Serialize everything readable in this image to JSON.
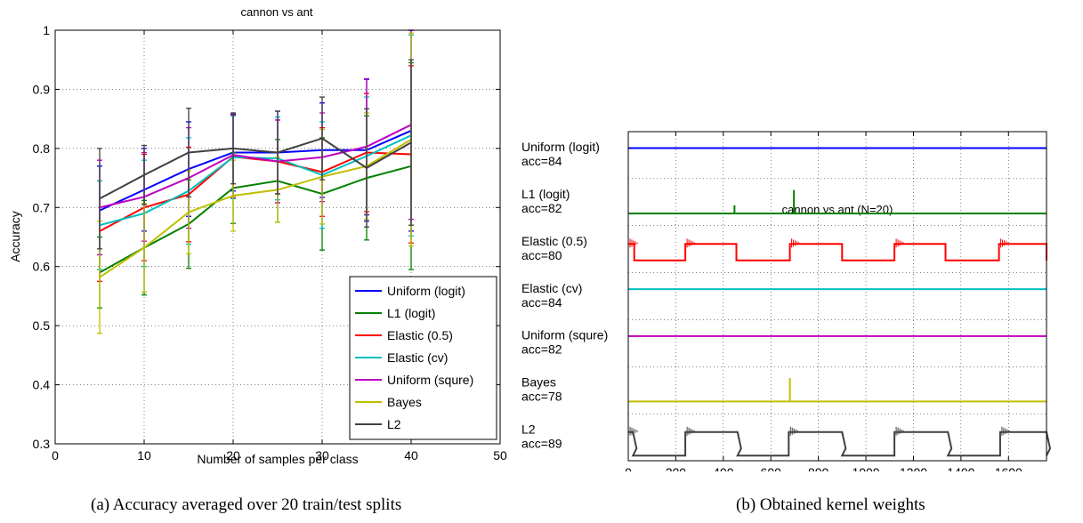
{
  "captions": {
    "left": "(a)  Accuracy averaged over 20 train/test splits",
    "right": "(b)  Obtained kernel weights"
  },
  "chart_data": [
    {
      "type": "line",
      "title": "cannon vs ant",
      "xlabel": "Number of samples per class",
      "ylabel": "Accuracy",
      "xlim": [
        0,
        50
      ],
      "ylim": [
        0.3,
        1.0
      ],
      "xticks": [
        0,
        10,
        20,
        30,
        40,
        50
      ],
      "yticks": [
        0.3,
        0.4,
        0.5,
        0.6,
        0.7,
        0.8,
        0.9,
        1.0
      ],
      "grid": true,
      "legend_position": "bottom-right",
      "x": [
        5,
        10,
        15,
        20,
        25,
        30,
        35,
        40
      ],
      "series": [
        {
          "name": "Uniform (logit)",
          "color": "#0000ff",
          "values": [
            0.695,
            0.73,
            0.765,
            0.793,
            0.793,
            0.797,
            0.797,
            0.83
          ],
          "err": [
            0.075,
            0.07,
            0.08,
            0.065,
            0.07,
            0.08,
            0.12,
            0.17
          ]
        },
        {
          "name": "L1 (logit)",
          "color": "#008000",
          "values": [
            0.59,
            0.632,
            0.672,
            0.733,
            0.745,
            0.723,
            0.75,
            0.77
          ],
          "err": [
            0.06,
            0.08,
            0.075,
            0.06,
            0.07,
            0.095,
            0.105,
            0.175
          ]
        },
        {
          "name": "Elastic (0.5)",
          "color": "#ff0000",
          "values": [
            0.66,
            0.7,
            0.722,
            0.786,
            0.778,
            0.76,
            0.793,
            0.79
          ],
          "err": [
            0.085,
            0.09,
            0.08,
            0.07,
            0.07,
            0.075,
            0.1,
            0.15
          ]
        },
        {
          "name": "Elastic (cv)",
          "color": "#00bfbf",
          "values": [
            0.67,
            0.69,
            0.728,
            0.785,
            0.783,
            0.755,
            0.787,
            0.822
          ],
          "err": [
            0.075,
            0.09,
            0.09,
            0.07,
            0.07,
            0.09,
            0.1,
            0.17
          ]
        },
        {
          "name": "Uniform (squre)",
          "color": "#bf00bf",
          "values": [
            0.7,
            0.718,
            0.75,
            0.789,
            0.778,
            0.785,
            0.803,
            0.84
          ],
          "err": [
            0.08,
            0.075,
            0.085,
            0.07,
            0.07,
            0.075,
            0.115,
            0.16
          ]
        },
        {
          "name": "Bayes",
          "color": "#bfbf00",
          "values": [
            0.582,
            0.632,
            0.692,
            0.72,
            0.73,
            0.752,
            0.77,
            0.815
          ],
          "err": [
            0.095,
            0.075,
            0.07,
            0.06,
            0.055,
            0.08,
            0.09,
            0.18
          ]
        },
        {
          "name": "L2",
          "color": "#404040",
          "values": [
            0.715,
            0.755,
            0.793,
            0.8,
            0.793,
            0.817,
            0.767,
            0.81
          ],
          "err": [
            0.085,
            0.05,
            0.075,
            0.06,
            0.07,
            0.07,
            0.1,
            0.14
          ]
        }
      ]
    },
    {
      "type": "line",
      "title": "cannon vs ant (N=20)",
      "xlabel": "",
      "ylabel": "",
      "xlim": [
        0,
        1760
      ],
      "xticks": [
        0,
        200,
        400,
        600,
        800,
        1000,
        1200,
        1400,
        1600
      ],
      "grid": true,
      "series": [
        {
          "name": "Uniform (logit)",
          "sublabel": "acc=84",
          "color": "#0000ff",
          "pattern": "flat"
        },
        {
          "name": "L1 (logit)",
          "sublabel": "acc=82",
          "color": "#008000",
          "pattern": "spikes",
          "spikes": [
            [
              447,
              0.35
            ],
            [
              697,
              1.0
            ]
          ]
        },
        {
          "name": "Elastic (0.5)",
          "sublabel": "acc=80",
          "color": "#ff0000",
          "pattern": "blocks",
          "high_ranges": [
            [
              0,
              25
            ],
            [
              240,
              455
            ],
            [
              680,
              900
            ],
            [
              1120,
              1335
            ],
            [
              1560,
              1760
            ]
          ]
        },
        {
          "name": "Elastic (cv)",
          "sublabel": "acc=84",
          "color": "#00bfbf",
          "pattern": "flat"
        },
        {
          "name": "Uniform (squre)",
          "sublabel": "acc=82",
          "color": "#bf00bf",
          "pattern": "flat"
        },
        {
          "name": "Bayes",
          "sublabel": "acc=78",
          "color": "#bfbf00",
          "pattern": "spikes",
          "spikes": [
            [
              680,
              1.0
            ]
          ]
        },
        {
          "name": "L2",
          "sublabel": "acc=89",
          "color": "#404040",
          "pattern": "blocks",
          "high_ranges": [
            [
              0,
              20
            ],
            [
              240,
              460
            ],
            [
              675,
              900
            ],
            [
              1120,
              1345
            ],
            [
              1565,
              1760
            ]
          ]
        }
      ]
    }
  ]
}
